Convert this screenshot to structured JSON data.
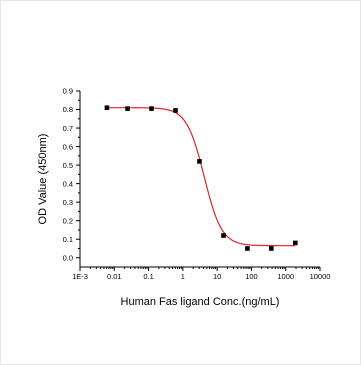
{
  "chart_data": {
    "type": "scatter",
    "title": "",
    "xlabel": "Human Fas ligand Conc.(ng/mL)",
    "ylabel": "OD Value (450nm)",
    "xscale": "log",
    "xlim": [
      0.001,
      10000
    ],
    "ylim": [
      -0.05,
      0.9
    ],
    "x_ticks": [
      0.001,
      0.01,
      0.1,
      1,
      10,
      100,
      1000,
      10000
    ],
    "x_tick_labels": [
      "1E-3",
      "0.01",
      "0.1",
      "1",
      "10",
      "100",
      "1000",
      "10000"
    ],
    "y_ticks": [
      0.0,
      0.1,
      0.2,
      0.3,
      0.4,
      0.5,
      0.6,
      0.7,
      0.8,
      0.9
    ],
    "y_tick_labels": [
      "0.0",
      "0.1",
      "0.2",
      "0.3",
      "0.4",
      "0.5",
      "0.6",
      "0.7",
      "0.8",
      "0.9"
    ],
    "grid": false,
    "legend": "none",
    "series": [
      {
        "marker": "square",
        "color": "#000000",
        "x": [
          0.0061,
          0.0244,
          0.122,
          0.61,
          3.05,
          15.3,
          76.3,
          381,
          1907
        ],
        "y": [
          0.81,
          0.805,
          0.805,
          0.795,
          0.52,
          0.12,
          0.05,
          0.05,
          0.08
        ]
      }
    ],
    "fit_curve": {
      "model": "4PL",
      "color": "#e8202a",
      "top": 0.81,
      "bottom": 0.065,
      "ec50": 4.2,
      "hill": 1.7,
      "x_range": [
        0.0061,
        1907
      ]
    }
  }
}
